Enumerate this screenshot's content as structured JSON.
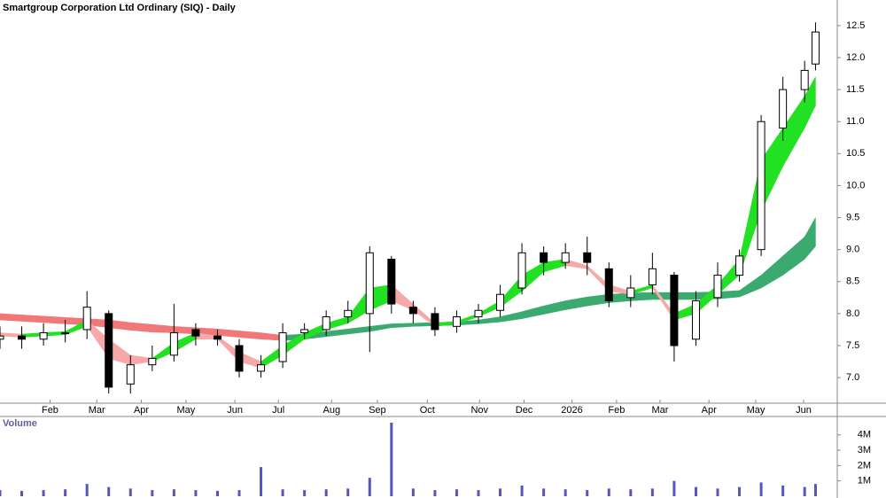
{
  "chart_data": [
    {
      "type": "candlestick",
      "title": "Smartgroup Corporation Ltd Ordinary (SIQ) - Daily",
      "x": [
        0,
        2,
        4,
        6,
        8,
        10,
        12,
        14,
        16,
        18,
        20,
        22,
        24,
        26,
        28,
        30,
        32,
        34,
        36,
        38,
        40,
        42,
        44,
        46,
        48,
        50,
        52,
        54,
        56,
        58,
        60,
        62,
        64,
        66,
        68,
        70,
        72,
        74,
        75
      ],
      "open": [
        7.6,
        7.65,
        7.6,
        7.7,
        7.75,
        8.0,
        6.9,
        7.2,
        7.35,
        7.75,
        7.65,
        7.5,
        7.1,
        7.25,
        7.7,
        7.75,
        7.95,
        8.0,
        8.85,
        8.1,
        8.0,
        7.8,
        7.95,
        8.05,
        8.4,
        8.95,
        8.8,
        8.95,
        8.7,
        8.25,
        8.45,
        8.6,
        7.6,
        8.25,
        8.6,
        9.0,
        10.9,
        11.5,
        11.9
      ],
      "high": [
        7.8,
        7.8,
        7.85,
        7.9,
        8.35,
        8.05,
        7.35,
        7.5,
        8.15,
        7.85,
        7.75,
        7.6,
        7.35,
        7.85,
        7.85,
        8.05,
        8.2,
        9.05,
        8.9,
        8.2,
        8.1,
        8.05,
        8.15,
        8.45,
        9.1,
        9.05,
        9.1,
        9.2,
        8.8,
        8.6,
        8.95,
        8.65,
        8.35,
        8.8,
        9.0,
        11.1,
        11.7,
        11.95,
        12.55
      ],
      "low": [
        7.45,
        7.45,
        7.5,
        7.55,
        7.6,
        6.75,
        6.75,
        7.1,
        7.25,
        7.5,
        7.5,
        7.0,
        7.0,
        7.15,
        7.6,
        7.65,
        7.85,
        7.4,
        8.0,
        7.85,
        7.65,
        7.7,
        7.85,
        7.95,
        8.3,
        8.6,
        8.7,
        8.6,
        8.1,
        8.1,
        8.3,
        7.25,
        7.5,
        8.1,
        8.5,
        8.9,
        10.7,
        11.3,
        11.8
      ],
      "close": [
        7.65,
        7.6,
        7.7,
        7.7,
        8.1,
        6.85,
        7.2,
        7.3,
        7.7,
        7.65,
        7.6,
        7.1,
        7.2,
        7.7,
        7.75,
        7.95,
        8.05,
        8.95,
        8.15,
        8.0,
        7.75,
        7.95,
        8.05,
        8.3,
        8.95,
        8.8,
        8.95,
        8.8,
        8.2,
        8.4,
        8.7,
        7.5,
        8.2,
        8.6,
        8.9,
        11.0,
        11.5,
        11.8,
        12.4
      ],
      "ribbons": [
        {
          "upper": [
            8.0,
            7.98,
            7.96,
            7.94,
            7.92,
            7.9,
            7.86,
            7.83,
            7.8,
            7.78,
            7.76,
            7.73,
            7.7,
            7.66,
            7.68,
            7.72,
            7.76,
            7.8,
            7.84,
            7.85,
            7.86,
            7.87,
            7.9,
            7.95,
            8.03,
            8.12,
            8.2,
            8.26,
            8.3,
            8.32,
            8.33,
            8.33,
            8.33,
            8.34,
            8.36,
            8.6,
            8.9,
            9.2,
            9.5
          ],
          "lower": [
            7.9,
            7.88,
            7.86,
            7.84,
            7.82,
            7.78,
            7.74,
            7.71,
            7.7,
            7.68,
            7.66,
            7.63,
            7.6,
            7.58,
            7.6,
            7.64,
            7.68,
            7.72,
            7.78,
            7.8,
            7.81,
            7.82,
            7.84,
            7.87,
            7.92,
            7.99,
            8.06,
            8.12,
            8.17,
            8.2,
            8.22,
            8.22,
            8.22,
            8.23,
            8.26,
            8.4,
            8.6,
            8.85,
            9.05
          ],
          "color_up": "#3aaa6e",
          "color_down": "#f07878"
        },
        {
          "upper": [
            7.7,
            7.68,
            7.7,
            7.72,
            7.9,
            7.6,
            7.35,
            7.3,
            7.55,
            7.7,
            7.65,
            7.4,
            7.25,
            7.5,
            7.7,
            7.85,
            7.95,
            8.4,
            8.45,
            8.15,
            7.85,
            7.88,
            8.0,
            8.2,
            8.6,
            8.8,
            8.85,
            8.75,
            8.45,
            8.35,
            8.45,
            8.0,
            8.15,
            8.45,
            8.85,
            10.4,
            10.9,
            11.4,
            11.7
          ],
          "lower": [
            7.65,
            7.63,
            7.65,
            7.67,
            7.8,
            7.3,
            7.2,
            7.25,
            7.4,
            7.6,
            7.6,
            7.25,
            7.15,
            7.35,
            7.6,
            7.75,
            7.85,
            8.05,
            8.2,
            8.05,
            7.8,
            7.84,
            7.95,
            8.1,
            8.35,
            8.65,
            8.75,
            8.7,
            8.35,
            8.3,
            8.4,
            7.9,
            8.0,
            8.3,
            8.6,
            9.6,
            10.3,
            10.9,
            11.25
          ],
          "color_up": "#22e022",
          "color_down": "#f7a8a8"
        }
      ],
      "xlim": [
        0,
        77
      ],
      "xticks": [
        {
          "value": 4.6,
          "label": "Feb"
        },
        {
          "value": 8.9,
          "label": "Mar"
        },
        {
          "value": 13.0,
          "label": "Apr"
        },
        {
          "value": 17.1,
          "label": "May"
        },
        {
          "value": 21.6,
          "label": "Jun"
        },
        {
          "value": 25.6,
          "label": "Jul"
        },
        {
          "value": 30.5,
          "label": "Aug"
        },
        {
          "value": 34.7,
          "label": "Sep"
        },
        {
          "value": 39.3,
          "label": "Oct"
        },
        {
          "value": 44.1,
          "label": "Nov"
        },
        {
          "value": 48.2,
          "label": "Dec"
        },
        {
          "value": 52.6,
          "label": "2026"
        },
        {
          "value": 56.7,
          "label": "Feb"
        },
        {
          "value": 60.7,
          "label": "Mar"
        },
        {
          "value": 65.2,
          "label": "Apr"
        },
        {
          "value": 69.5,
          "label": "May"
        },
        {
          "value": 73.9,
          "label": "Jun"
        }
      ],
      "ylim": [
        6.6,
        12.9
      ],
      "yticks": [
        {
          "value": 7,
          "label": "7.0"
        },
        7.5,
        {
          "value": 8,
          "label": "8.0"
        },
        8.5,
        {
          "value": 9,
          "label": "9.0"
        },
        9.5,
        {
          "value": 10,
          "label": "10.0"
        },
        10.5,
        {
          "value": 11,
          "label": "11.0"
        },
        11.5,
        {
          "value": 12,
          "label": "12.0"
        },
        12.5
      ],
      "up_color": "#ffffff",
      "down_color": "#000000"
    },
    {
      "type": "bar",
      "title": "Volume",
      "x": [
        0,
        2,
        4,
        6,
        8,
        10,
        12,
        14,
        16,
        18,
        20,
        22,
        24,
        26,
        28,
        30,
        32,
        34,
        36,
        38,
        40,
        42,
        44,
        46,
        48,
        50,
        52,
        54,
        56,
        58,
        60,
        62,
        64,
        66,
        68,
        70,
        72,
        74,
        75
      ],
      "values": [
        0.4,
        0.35,
        0.4,
        0.45,
        0.8,
        0.6,
        0.5,
        0.4,
        0.45,
        0.4,
        0.35,
        0.4,
        1.9,
        0.45,
        0.4,
        0.45,
        0.5,
        1.2,
        4.8,
        0.5,
        0.4,
        0.45,
        0.4,
        0.5,
        0.7,
        0.5,
        0.45,
        0.4,
        0.5,
        0.45,
        0.5,
        1.0,
        0.6,
        0.5,
        0.6,
        0.9,
        0.7,
        0.6,
        0.8
      ],
      "color": "#5555bb",
      "xlim": [
        0,
        77
      ],
      "ylim": [
        0,
        5.2
      ],
      "yticks": [
        {
          "value": 1,
          "label": "1M"
        },
        {
          "value": 2,
          "label": "2M"
        },
        {
          "value": 3,
          "label": "3M"
        },
        {
          "value": 4,
          "label": "4M"
        }
      ]
    }
  ]
}
